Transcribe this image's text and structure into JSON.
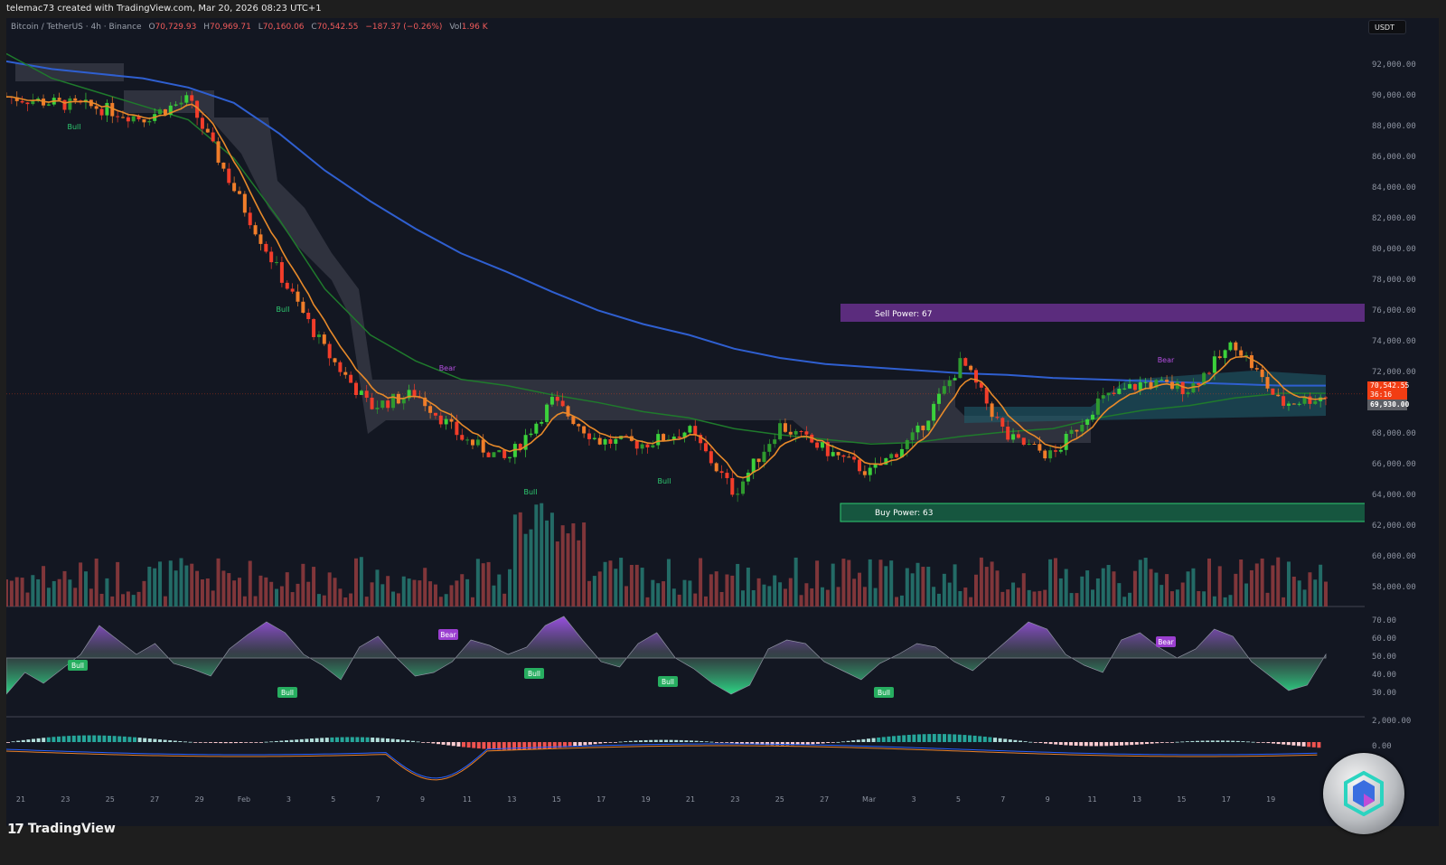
{
  "header": {
    "credit": "telemac73 created with TradingView.com, Mar 20, 2026 08:23 UTC+1"
  },
  "legend": {
    "symbol": "Bitcoin / TetherUS · 4h · Binance",
    "open_label": "O",
    "open": "70,729.93",
    "high_label": "H",
    "high": "70,969.71",
    "low_label": "L",
    "low": "70,160.06",
    "close_label": "C",
    "close": "70,542.55",
    "change": "−187.37 (−0.26%)",
    "vol_label": "Vol",
    "vol": "1.96 K"
  },
  "currency": "USDT",
  "price_axis": {
    "ticks": [
      "92,000.00",
      "90,000.00",
      "88,000.00",
      "86,000.00",
      "84,000.00",
      "82,000.00",
      "80,000.00",
      "78,000.00",
      "76,000.00",
      "74,000.00",
      "72,000.00",
      "68,000.00",
      "66,000.00",
      "64,000.00",
      "62,000.00",
      "60,000.00",
      "58,000.00"
    ],
    "current_price": "70,542.55",
    "countdown": "36:16",
    "secondary_price": "69,930.00"
  },
  "oscillator_axis": {
    "ticks": [
      "70.00",
      "60.00",
      "50.00",
      "40.00",
      "30.00"
    ]
  },
  "macd_axis": {
    "ticks": [
      "2,000.00",
      "0.00"
    ]
  },
  "time_axis": {
    "ticks": [
      "21",
      "23",
      "25",
      "27",
      "29",
      "Feb",
      "3",
      "5",
      "7",
      "9",
      "11",
      "13",
      "15",
      "17",
      "19",
      "21",
      "23",
      "25",
      "27",
      "Mar",
      "3",
      "5",
      "7",
      "9",
      "11",
      "13",
      "15",
      "17",
      "19"
    ]
  },
  "zones": {
    "sell": {
      "label": "Sell Power: 67",
      "color": "#5b2c7d"
    },
    "buy": {
      "label": "Buy Power: 63",
      "color": "#16563f"
    }
  },
  "signals": {
    "bull": "Bull",
    "bear": "Bear"
  },
  "branding": {
    "logo": "TradingView"
  },
  "colors": {
    "background": "#131722",
    "ema_blue": "#2f5fd0",
    "ema_green": "#1f7a2c",
    "ema_orange": "#e88a2a",
    "cloud_gray": "#3a3c48",
    "cloud_teal": "#1f5b6b",
    "vol_up": "#26746e",
    "vol_down": "#8d3a3d",
    "bull": "#2ecc71",
    "bear": "#b44fe0"
  },
  "chart_data": {
    "type": "candlestick",
    "title": "Bitcoin / TetherUS · 4h · Binance",
    "xlabel": "",
    "ylabel": "USDT",
    "ylim": [
      57000,
      93500
    ],
    "x": [
      "Jan 21",
      "Jan 23",
      "Jan 25",
      "Jan 27",
      "Jan 29",
      "Feb 1",
      "Feb 3",
      "Feb 5",
      "Feb 7",
      "Feb 9",
      "Feb 11",
      "Feb 13",
      "Feb 15",
      "Feb 17",
      "Feb 19",
      "Feb 21",
      "Feb 23",
      "Feb 25",
      "Feb 27",
      "Mar 1",
      "Mar 3",
      "Mar 5",
      "Mar 7",
      "Mar 9",
      "Mar 11",
      "Mar 13",
      "Mar 15",
      "Mar 17",
      "Mar 19",
      "Mar 20"
    ],
    "series": [
      {
        "name": "Close (approx)",
        "values": [
          90000,
          89600,
          89300,
          88600,
          89800,
          84000,
          78500,
          73500,
          69800,
          70700,
          67800,
          66300,
          70200,
          67600,
          67400,
          68300,
          64200,
          68600,
          67000,
          65500,
          68000,
          72800,
          67800,
          66600,
          70200,
          71400,
          71000,
          74000,
          70000,
          70543
        ]
      },
      {
        "name": "EMA long (blue)",
        "values": [
          92300,
          91800,
          91500,
          91200,
          90600,
          89600,
          87600,
          85200,
          83200,
          81400,
          79800,
          78600,
          77300,
          76100,
          75200,
          74500,
          73600,
          73000,
          72600,
          72400,
          72200,
          72000,
          71900,
          71700,
          71600,
          71500,
          71400,
          71300,
          71200,
          71200
        ]
      },
      {
        "name": "EMA mid (green)",
        "values": [
          92800,
          91200,
          90300,
          89400,
          88500,
          86000,
          82000,
          77500,
          74500,
          72800,
          71600,
          71200,
          70600,
          70100,
          69500,
          69100,
          68400,
          68000,
          67700,
          67400,
          67500,
          67900,
          68200,
          68400,
          69100,
          69600,
          69900,
          70400,
          70700,
          70700
        ]
      }
    ],
    "annotations": [
      {
        "text": "Sell Power: 67",
        "range": [
          75500,
          76700
        ]
      },
      {
        "text": "Buy Power: 63",
        "range": [
          62500,
          63500
        ]
      },
      {
        "text": "Bull",
        "x": "Jan 24"
      },
      {
        "text": "Bull",
        "x": "Feb 2"
      },
      {
        "text": "Bear",
        "x": "Feb 9"
      },
      {
        "text": "Bull",
        "x": "Feb 13"
      },
      {
        "text": "Bull",
        "x": "Feb 19"
      },
      {
        "text": "Bull",
        "x": "Mar 1"
      },
      {
        "text": "Bear",
        "x": "Mar 13"
      }
    ],
    "subcharts": [
      {
        "type": "area",
        "name": "Oscillator",
        "ylim": [
          25,
          75
        ],
        "midline": 50,
        "values": [
          30,
          42,
          36,
          44,
          52,
          68,
          60,
          52,
          58,
          47,
          44,
          40,
          55,
          63,
          70,
          64,
          52,
          46,
          38,
          56,
          62,
          50,
          40,
          42,
          48,
          60,
          57,
          52,
          56,
          68,
          73,
          60,
          48,
          45,
          58,
          64,
          50,
          44,
          36,
          30,
          35,
          55,
          60,
          58,
          48,
          43,
          38,
          47,
          52,
          58,
          56,
          48,
          43,
          52,
          61,
          70,
          66,
          52,
          46,
          42,
          60,
          64,
          56,
          50,
          55,
          66,
          62,
          48,
          40,
          32,
          35,
          52
        ]
      },
      {
        "type": "histogram+lines",
        "name": "MACD",
        "ylim": [
          -6000,
          2500
        ],
        "ticks": [
          2000,
          0
        ]
      }
    ]
  }
}
